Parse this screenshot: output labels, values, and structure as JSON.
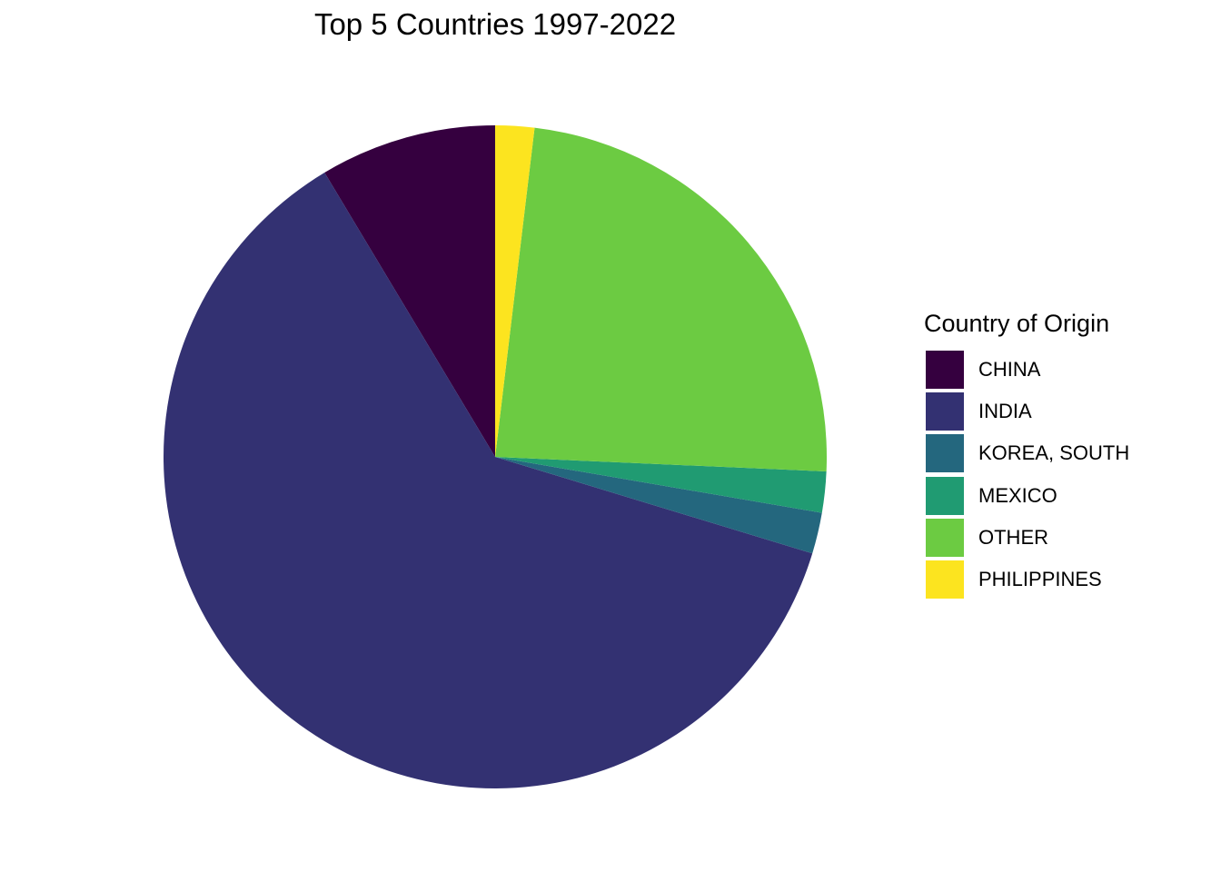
{
  "chart_data": {
    "type": "pie",
    "title": "Top 5 Countries 1997-2022",
    "legend_title": "Country of Origin",
    "legend_position": "right",
    "start_angle": "12 o'clock",
    "direction": "counterclockwise",
    "slices": [
      {
        "label": "CHINA",
        "value": 8.6,
        "color": "#35003F"
      },
      {
        "label": "INDIA",
        "value": 61.7,
        "color": "#333172"
      },
      {
        "label": "KOREA, SOUTH",
        "value": 2.0,
        "color": "#24677E"
      },
      {
        "label": "MEXICO",
        "value": 2.0,
        "color": "#209B72"
      },
      {
        "label": "OTHER",
        "value": 23.8,
        "color": "#6CCB42"
      },
      {
        "label": "PHILIPPINES",
        "value": 1.9,
        "color": "#FCE41F"
      }
    ]
  }
}
